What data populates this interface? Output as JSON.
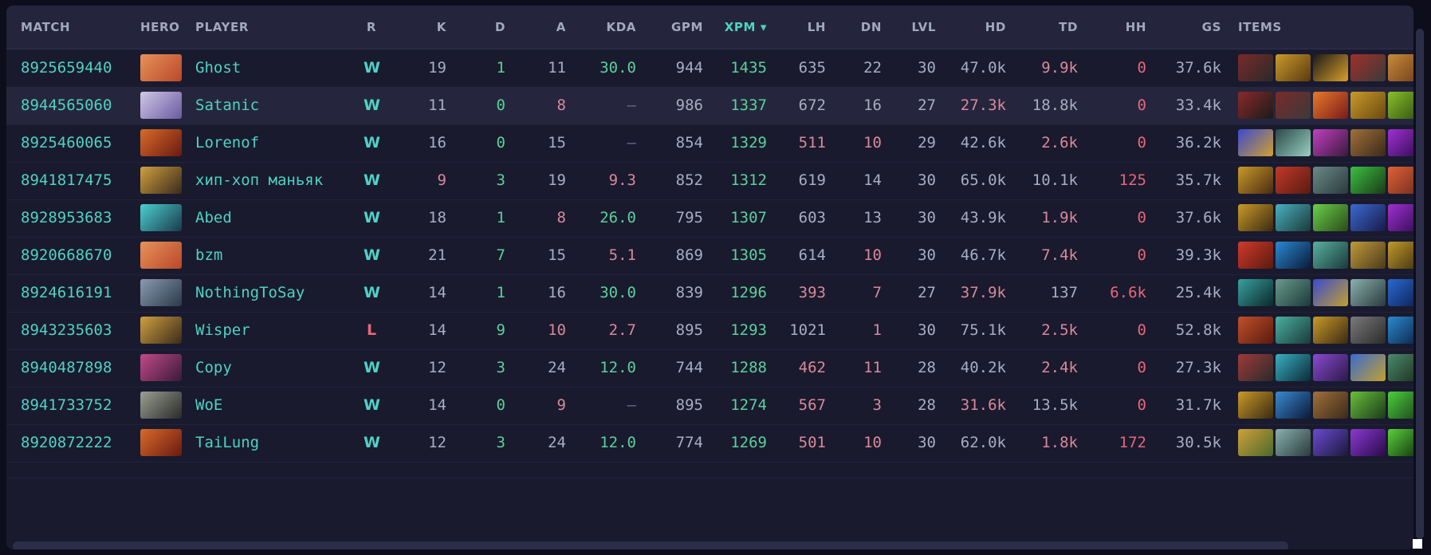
{
  "header": {
    "match": "MATCH",
    "hero": "HERO",
    "player": "PLAYER",
    "r": "R",
    "k": "K",
    "d": "D",
    "a": "A",
    "kda": "KDA",
    "gpm": "GPM",
    "xpm": "XPM ▾",
    "lh": "LH",
    "dn": "DN",
    "lvl": "LVL",
    "hd": "HD",
    "td": "TD",
    "hh": "HH",
    "gs": "GS",
    "items": "ITEMS"
  },
  "colors": {
    "accent": "#4fd2c4",
    "win": "#4fd2c4",
    "loss": "#e8667a",
    "positive": "#5ad19a",
    "negative": "#e8667a"
  },
  "rows": [
    {
      "match": "8925659440",
      "hero_color": [
        "#e8925a",
        "#b8482a"
      ],
      "player": "Ghost",
      "result": "W",
      "k": "19",
      "d": "1",
      "a": "11",
      "kda": "30.0",
      "gpm": "944",
      "xpm": "1435",
      "lh": "635",
      "dn": "22",
      "lvl": "30",
      "hd": "47.0k",
      "td": "9.9k",
      "hh": "0",
      "gs": "37.6k",
      "items": [
        [
          "#7a2a2a",
          "#2a2a2a"
        ],
        [
          "#c99a2a",
          "#5a3a10"
        ],
        [
          "#1a1a1a",
          "#d9a02a"
        ],
        [
          "#a0302a",
          "#3a3a3a"
        ],
        [
          "#c98a3a",
          "#6a3a1a"
        ]
      ]
    },
    {
      "match": "8944565060",
      "hero_color": [
        "#cfc8e8",
        "#6a5aa0"
      ],
      "player": "Satanic",
      "result": "W",
      "k": "11",
      "d": "0",
      "a": "8",
      "kda": "—",
      "gpm": "986",
      "xpm": "1337",
      "lh": "672",
      "dn": "16",
      "lvl": "27",
      "hd": "27.3k",
      "td": "18.8k",
      "hh": "0",
      "gs": "33.4k",
      "items": [
        [
          "#8a2a2a",
          "#1a1a1a"
        ],
        [
          "#7a2a2a",
          "#3a3a3a"
        ],
        [
          "#e87a2a",
          "#7a1a1a"
        ],
        [
          "#c99a2a",
          "#6a4a10"
        ],
        [
          "#8ac02a",
          "#2a4a10"
        ]
      ]
    },
    {
      "match": "8925460065",
      "hero_color": [
        "#d86a2a",
        "#6a1a10"
      ],
      "player": "Lorenof",
      "result": "W",
      "k": "16",
      "d": "0",
      "a": "15",
      "kda": "—",
      "gpm": "854",
      "xpm": "1329",
      "lh": "511",
      "dn": "10",
      "lvl": "29",
      "hd": "42.6k",
      "td": "2.6k",
      "hh": "0",
      "gs": "36.2k",
      "items": [
        [
          "#3a4ad0",
          "#d0a030"
        ],
        [
          "#2a4a4a",
          "#9ad0c0"
        ],
        [
          "#c040c0",
          "#3a1a3a"
        ],
        [
          "#a0703a",
          "#3a2a1a"
        ],
        [
          "#a030d0",
          "#2a0a4a"
        ]
      ]
    },
    {
      "match": "8941817475",
      "hero_color": [
        "#d0a040",
        "#3a2a1a"
      ],
      "player": "хип-хоп маньяк",
      "result": "W",
      "k": "9",
      "d": "3",
      "a": "19",
      "kda": "9.3",
      "gpm": "852",
      "xpm": "1312",
      "lh": "619",
      "dn": "14",
      "lvl": "30",
      "hd": "65.0k",
      "td": "10.1k",
      "hh": "125",
      "gs": "35.7k",
      "items": [
        [
          "#c99a2a",
          "#4a2a10"
        ],
        [
          "#c03a2a",
          "#5a1a10"
        ],
        [
          "#6a8a8a",
          "#2a3a3a"
        ],
        [
          "#3ac040",
          "#1a3a1a"
        ],
        [
          "#e0603a",
          "#6a2a1a"
        ]
      ]
    },
    {
      "match": "8928953683",
      "hero_color": [
        "#4ad0d0",
        "#1a3a4a"
      ],
      "player": "Abed",
      "result": "W",
      "k": "18",
      "d": "1",
      "a": "8",
      "kda": "26.0",
      "gpm": "795",
      "xpm": "1307",
      "lh": "603",
      "dn": "13",
      "lvl": "30",
      "hd": "43.9k",
      "td": "1.9k",
      "hh": "0",
      "gs": "37.6k",
      "items": [
        [
          "#c99a2a",
          "#3a2a10"
        ],
        [
          "#4ab0c0",
          "#1a3a3a"
        ],
        [
          "#6ad04a",
          "#2a4a1a"
        ],
        [
          "#3a6ad0",
          "#1a1a4a"
        ],
        [
          "#a030d0",
          "#2a0a4a"
        ]
      ]
    },
    {
      "match": "8920668670",
      "hero_color": [
        "#e8925a",
        "#b8482a"
      ],
      "player": "bzm",
      "result": "W",
      "k": "21",
      "d": "7",
      "a": "15",
      "kda": "5.1",
      "gpm": "869",
      "xpm": "1305",
      "lh": "614",
      "dn": "10",
      "lvl": "30",
      "hd": "46.7k",
      "td": "7.4k",
      "hh": "0",
      "gs": "39.3k",
      "items": [
        [
          "#d03a2a",
          "#5a1a10"
        ],
        [
          "#2a8ad0",
          "#0a1a3a"
        ],
        [
          "#5ab0a0",
          "#1a3a3a"
        ],
        [
          "#c09a3a",
          "#4a3a1a"
        ],
        [
          "#c09a2a",
          "#3a2a10"
        ]
      ]
    },
    {
      "match": "8924616191",
      "hero_color": [
        "#8a9ab0",
        "#2a3a4a"
      ],
      "player": "NothingToSay",
      "result": "W",
      "k": "14",
      "d": "1",
      "a": "16",
      "kda": "30.0",
      "gpm": "839",
      "xpm": "1296",
      "lh": "393",
      "dn": "7",
      "lvl": "27",
      "hd": "37.9k",
      "td": "137",
      "hh": "6.6k",
      "gs": "25.4k",
      "items": [
        [
          "#3aa0a0",
          "#0a2a2a"
        ],
        [
          "#6a9a8a",
          "#1a3a3a"
        ],
        [
          "#3a4ad0",
          "#c0a030"
        ],
        [
          "#8ab0b0",
          "#2a3a3a"
        ],
        [
          "#2a6ad0",
          "#0a1a4a"
        ]
      ]
    },
    {
      "match": "8943235603",
      "hero_color": [
        "#d0a040",
        "#3a2a1a"
      ],
      "player": "Wisper",
      "result": "L",
      "k": "14",
      "d": "9",
      "a": "10",
      "kda": "2.7",
      "gpm": "895",
      "xpm": "1293",
      "lh": "1021",
      "dn": "1",
      "lvl": "30",
      "hd": "75.1k",
      "td": "2.5k",
      "hh": "0",
      "gs": "52.8k",
      "items": [
        [
          "#c0502a",
          "#5a1a10"
        ],
        [
          "#4ab0a0",
          "#1a3a3a"
        ],
        [
          "#c99a2a",
          "#3a2a10"
        ],
        [
          "#7a7a7a",
          "#2a2a2a"
        ],
        [
          "#2a8ad0",
          "#0a1a3a"
        ]
      ]
    },
    {
      "match": "8940487898",
      "hero_color": [
        "#c04a8a",
        "#3a1a3a"
      ],
      "player": "Copy",
      "result": "W",
      "k": "12",
      "d": "3",
      "a": "24",
      "kda": "12.0",
      "gpm": "744",
      "xpm": "1288",
      "lh": "462",
      "dn": "11",
      "lvl": "28",
      "hd": "40.2k",
      "td": "2.4k",
      "hh": "0",
      "gs": "27.3k",
      "items": [
        [
          "#a03a3a",
          "#2a2a2a"
        ],
        [
          "#3ab0c0",
          "#0a2a3a"
        ],
        [
          "#8a4ad0",
          "#2a1a4a"
        ],
        [
          "#3a6ad0",
          "#c0a030"
        ],
        [
          "#4a8a6a",
          "#1a2a1a"
        ]
      ]
    },
    {
      "match": "8941733752",
      "hero_color": [
        "#9aa090",
        "#2a2a2a"
      ],
      "player": "WoE",
      "result": "W",
      "k": "14",
      "d": "0",
      "a": "9",
      "kda": "—",
      "gpm": "895",
      "xpm": "1274",
      "lh": "567",
      "dn": "3",
      "lvl": "28",
      "hd": "31.6k",
      "td": "13.5k",
      "hh": "0",
      "gs": "31.7k",
      "items": [
        [
          "#c99a2a",
          "#3a2a10"
        ],
        [
          "#3a8ad0",
          "#0a1a3a"
        ],
        [
          "#a0703a",
          "#3a2a1a"
        ],
        [
          "#6ac03a",
          "#1a3a1a"
        ],
        [
          "#4ad03a",
          "#1a3a1a"
        ]
      ]
    },
    {
      "match": "8920872222",
      "hero_color": [
        "#d86a2a",
        "#6a1a10"
      ],
      "player": "TaiLung",
      "result": "W",
      "k": "12",
      "d": "3",
      "a": "24",
      "kda": "12.0",
      "gpm": "774",
      "xpm": "1269",
      "lh": "501",
      "dn": "10",
      "lvl": "30",
      "hd": "62.0k",
      "td": "1.8k",
      "hh": "172",
      "gs": "30.5k",
      "items": [
        [
          "#d0a03a",
          "#4a6a2a"
        ],
        [
          "#8ab0b0",
          "#2a3a3a"
        ],
        [
          "#6a4ad0",
          "#1a1a3a"
        ],
        [
          "#8a3ad0",
          "#2a0a4a"
        ],
        [
          "#5ad03a",
          "#0a2a0a"
        ]
      ]
    }
  ]
}
